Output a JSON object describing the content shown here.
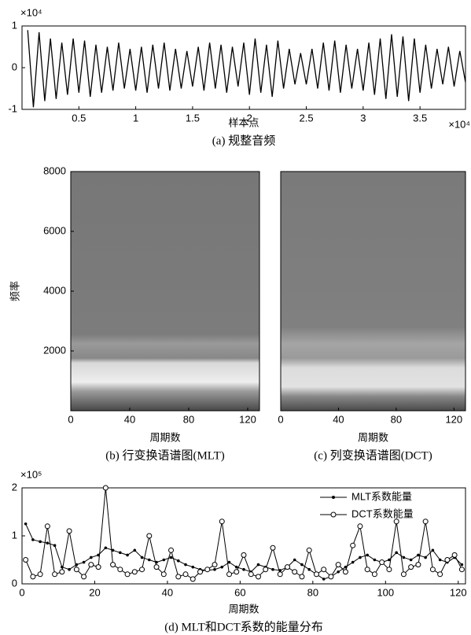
{
  "chart_data": [
    {
      "type": "line",
      "caption": "(a) 规整音频",
      "x_label": "样本点",
      "x_multiplier": "×10⁴",
      "y_multiplier": "×10⁴",
      "color": "#000000",
      "x": [
        0.05,
        0.1,
        0.15,
        0.2,
        0.25,
        0.3,
        0.35,
        0.4,
        0.45,
        0.5,
        0.55,
        0.6,
        0.65,
        0.7,
        0.75,
        0.8,
        0.85,
        0.9,
        0.95,
        1.0,
        1.05,
        1.1,
        1.15,
        1.2,
        1.25,
        1.3,
        1.35,
        1.4,
        1.45,
        1.5,
        1.55,
        1.6,
        1.65,
        1.7,
        1.75,
        1.8,
        1.85,
        1.9,
        1.95,
        2.0,
        2.05,
        2.1,
        2.15,
        2.2,
        2.25,
        2.3,
        2.35,
        2.4,
        2.45,
        2.5,
        2.55,
        2.6,
        2.65,
        2.7,
        2.75,
        2.8,
        2.85,
        2.9,
        2.95,
        3.0,
        3.05,
        3.1,
        3.15,
        3.2,
        3.25,
        3.3,
        3.35,
        3.4,
        3.45,
        3.5,
        3.55,
        3.6,
        3.65,
        3.7,
        3.75,
        3.8,
        3.85,
        3.9
      ],
      "values": [
        0.9,
        -0.95,
        0.85,
        -0.8,
        0.7,
        -0.75,
        0.6,
        -0.65,
        0.7,
        -0.6,
        0.65,
        -0.7,
        0.55,
        -0.6,
        0.5,
        -0.55,
        0.6,
        -0.5,
        0.45,
        -0.55,
        0.5,
        -0.6,
        0.55,
        -0.5,
        0.6,
        -0.55,
        0.45,
        -0.5,
        0.4,
        -0.45,
        0.5,
        -0.55,
        0.6,
        -0.5,
        0.55,
        -0.6,
        0.5,
        -0.45,
        0.6,
        -0.65,
        0.7,
        -0.6,
        0.55,
        -0.7,
        0.65,
        -0.5,
        0.45,
        -0.4,
        0.35,
        -0.4,
        0.45,
        -0.5,
        0.6,
        -0.55,
        0.65,
        -0.6,
        0.55,
        -0.5,
        0.45,
        -0.55,
        0.6,
        -0.65,
        0.7,
        -0.75,
        0.8,
        -0.7,
        0.75,
        -0.8,
        0.7,
        -0.6,
        0.55,
        -0.5,
        0.45,
        -0.4,
        0.5,
        -0.45,
        0.4,
        -0.35
      ],
      "xlim": [
        0,
        3.9
      ],
      "xticks": [
        0.5,
        1,
        1.5,
        2,
        2.5,
        3,
        3.5
      ],
      "ylim": [
        -1,
        1
      ],
      "yticks": [
        -1,
        0,
        1
      ]
    },
    {
      "type": "spectrogram",
      "caption": "(b) 行变换语谱图(MLT)",
      "x_label": "周期数",
      "y_label": "频率",
      "xlim": [
        0,
        128
      ],
      "xticks": [
        0,
        40,
        80,
        120
      ],
      "ylim": [
        0,
        8000
      ],
      "yticks": [
        2000,
        4000,
        6000,
        8000
      ]
    },
    {
      "type": "spectrogram",
      "caption": "(c) 列变换语谱图(DCT)",
      "x_label": "周期数",
      "xlim": [
        0,
        128
      ],
      "xticks": [
        0,
        40,
        80,
        120
      ],
      "ylim": [
        0,
        8000
      ]
    },
    {
      "type": "line",
      "caption": "(d) MLT和DCT系数的能量分布",
      "x_label": "周期数",
      "y_multiplier": "×10⁵",
      "x": [
        1,
        3,
        5,
        7,
        9,
        11,
        13,
        15,
        17,
        19,
        21,
        23,
        25,
        27,
        29,
        31,
        33,
        35,
        37,
        39,
        41,
        43,
        45,
        47,
        49,
        51,
        53,
        55,
        57,
        59,
        61,
        63,
        65,
        67,
        69,
        71,
        73,
        75,
        77,
        79,
        81,
        83,
        85,
        87,
        89,
        91,
        93,
        95,
        97,
        99,
        101,
        103,
        105,
        107,
        109,
        111,
        113,
        115,
        117,
        119,
        121
      ],
      "series": [
        {
          "name": "MLT系数能量",
          "color": "#000000",
          "marker": "dot",
          "values": [
            1.25,
            0.92,
            0.88,
            0.85,
            0.8,
            0.35,
            0.3,
            0.4,
            0.45,
            0.55,
            0.6,
            0.75,
            0.7,
            0.65,
            0.6,
            0.7,
            0.55,
            0.5,
            0.45,
            0.5,
            0.55,
            0.48,
            0.4,
            0.35,
            0.3,
            0.28,
            0.3,
            0.35,
            0.45,
            0.35,
            0.3,
            0.25,
            0.4,
            0.35,
            0.3,
            0.28,
            0.35,
            0.5,
            0.4,
            0.3,
            0.2,
            0.1,
            0.15,
            0.25,
            0.35,
            0.45,
            0.55,
            0.6,
            0.5,
            0.45,
            0.5,
            0.65,
            0.55,
            0.5,
            0.6,
            0.55,
            0.7,
            0.5,
            0.45,
            0.55,
            0.4
          ]
        },
        {
          "name": "DCT系数能量",
          "color": "#000000",
          "marker": "circle",
          "values": [
            0.5,
            0.15,
            0.2,
            1.2,
            0.2,
            0.25,
            1.1,
            0.3,
            0.15,
            0.4,
            0.35,
            2.0,
            0.4,
            0.3,
            0.2,
            0.25,
            0.3,
            1.0,
            0.35,
            0.2,
            0.7,
            0.15,
            0.2,
            0.1,
            0.25,
            0.3,
            0.4,
            1.3,
            0.2,
            0.25,
            0.6,
            0.2,
            0.15,
            0.3,
            0.75,
            0.2,
            0.35,
            0.25,
            0.15,
            0.7,
            0.2,
            0.3,
            0.15,
            0.4,
            0.25,
            0.8,
            1.2,
            0.3,
            0.2,
            0.45,
            0.3,
            1.3,
            0.2,
            0.35,
            0.4,
            1.3,
            0.3,
            0.2,
            0.5,
            0.6,
            0.3
          ]
        }
      ],
      "xlim": [
        0,
        122
      ],
      "xticks": [
        0,
        20,
        40,
        60,
        80,
        100,
        120
      ],
      "ylim": [
        0,
        2
      ],
      "yticks": [
        0,
        1,
        2
      ],
      "legend": "top-right"
    }
  ]
}
